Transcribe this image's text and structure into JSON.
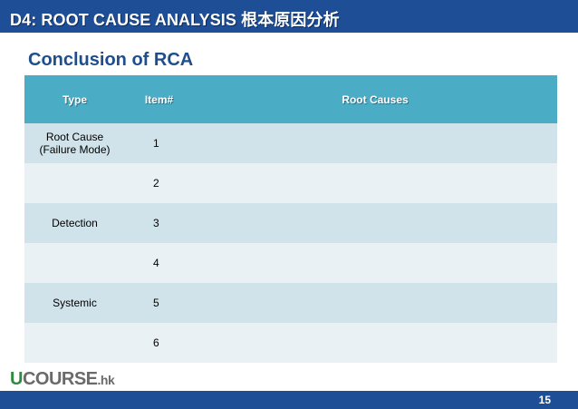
{
  "header": {
    "title": "D4: ROOT CAUSE ANALYSIS  根本原因分析"
  },
  "subtitle": "Conclusion of RCA",
  "table": {
    "columns": [
      "Type",
      "Item#",
      "Root Causes"
    ],
    "rows": [
      {
        "type": "Root Cause\n(Failure Mode)",
        "item": "1",
        "cause": ""
      },
      {
        "type": "",
        "item": "2",
        "cause": ""
      },
      {
        "type": "Detection",
        "item": "3",
        "cause": ""
      },
      {
        "type": "",
        "item": "4",
        "cause": ""
      },
      {
        "type": "Systemic",
        "item": "5",
        "cause": ""
      },
      {
        "type": "",
        "item": "6",
        "cause": ""
      }
    ]
  },
  "logo": {
    "u": "U",
    "main": "COURSE",
    "suffix": ".hk"
  },
  "footer": {
    "page_number": "15"
  },
  "colors": {
    "header_bar": "#1e4f96",
    "table_header": "#4bacc6",
    "row_dark": "#d0e3ea",
    "row_light": "#e9f1f5",
    "subtitle": "#1f4e8c",
    "logo_green": "#2e8b3e"
  }
}
